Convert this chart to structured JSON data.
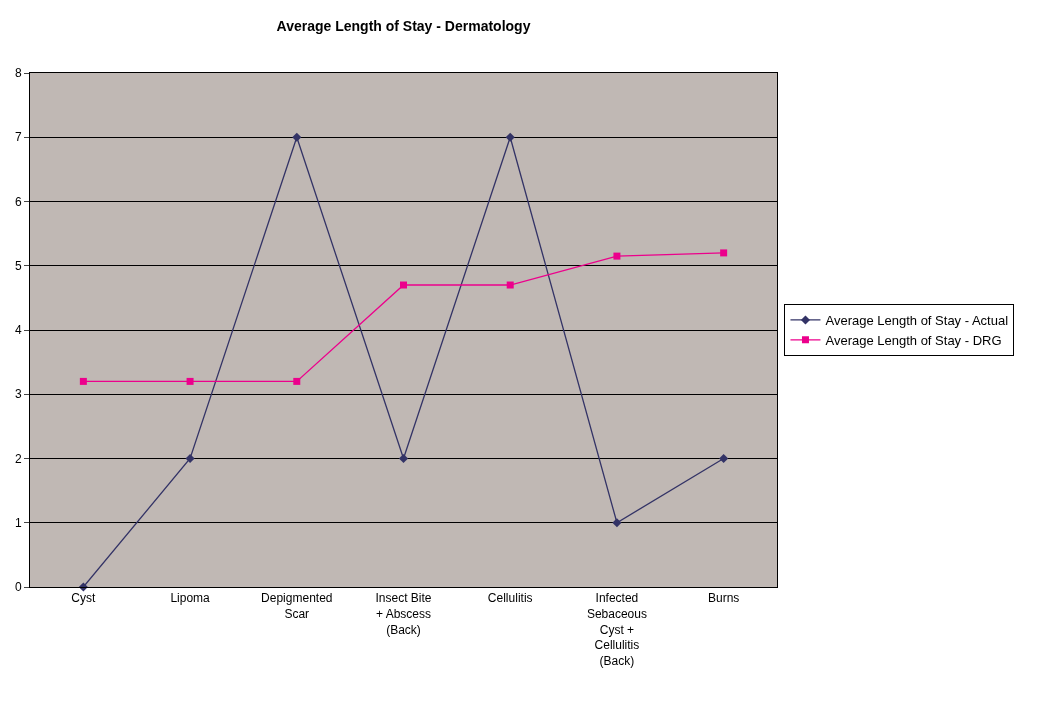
{
  "chart_data": {
    "type": "line",
    "title": "Average Length of Stay - Dermatology",
    "categories": [
      "Cyst",
      "Lipoma",
      "Depigmented Scar",
      "Insect Bite + Abscess (Back)",
      "Cellulitis",
      "Infected Sebaceous Cyst + Cellulitis (Back)",
      "Burns"
    ],
    "series": [
      {
        "name": "Average Length of Stay - Actual",
        "color": "#333366",
        "marker": "diamond",
        "values": [
          0,
          2,
          7,
          2,
          7,
          1,
          2
        ]
      },
      {
        "name": "Average Length of Stay - DRG",
        "color": "#ec008c",
        "marker": "square",
        "values": [
          3.2,
          3.2,
          3.2,
          4.7,
          4.7,
          5.15,
          5.2
        ]
      }
    ],
    "ylim": [
      0,
      8
    ],
    "yticks": [
      0,
      1,
      2,
      3,
      4,
      5,
      6,
      7,
      8
    ],
    "grid": "y",
    "legend": "right"
  }
}
